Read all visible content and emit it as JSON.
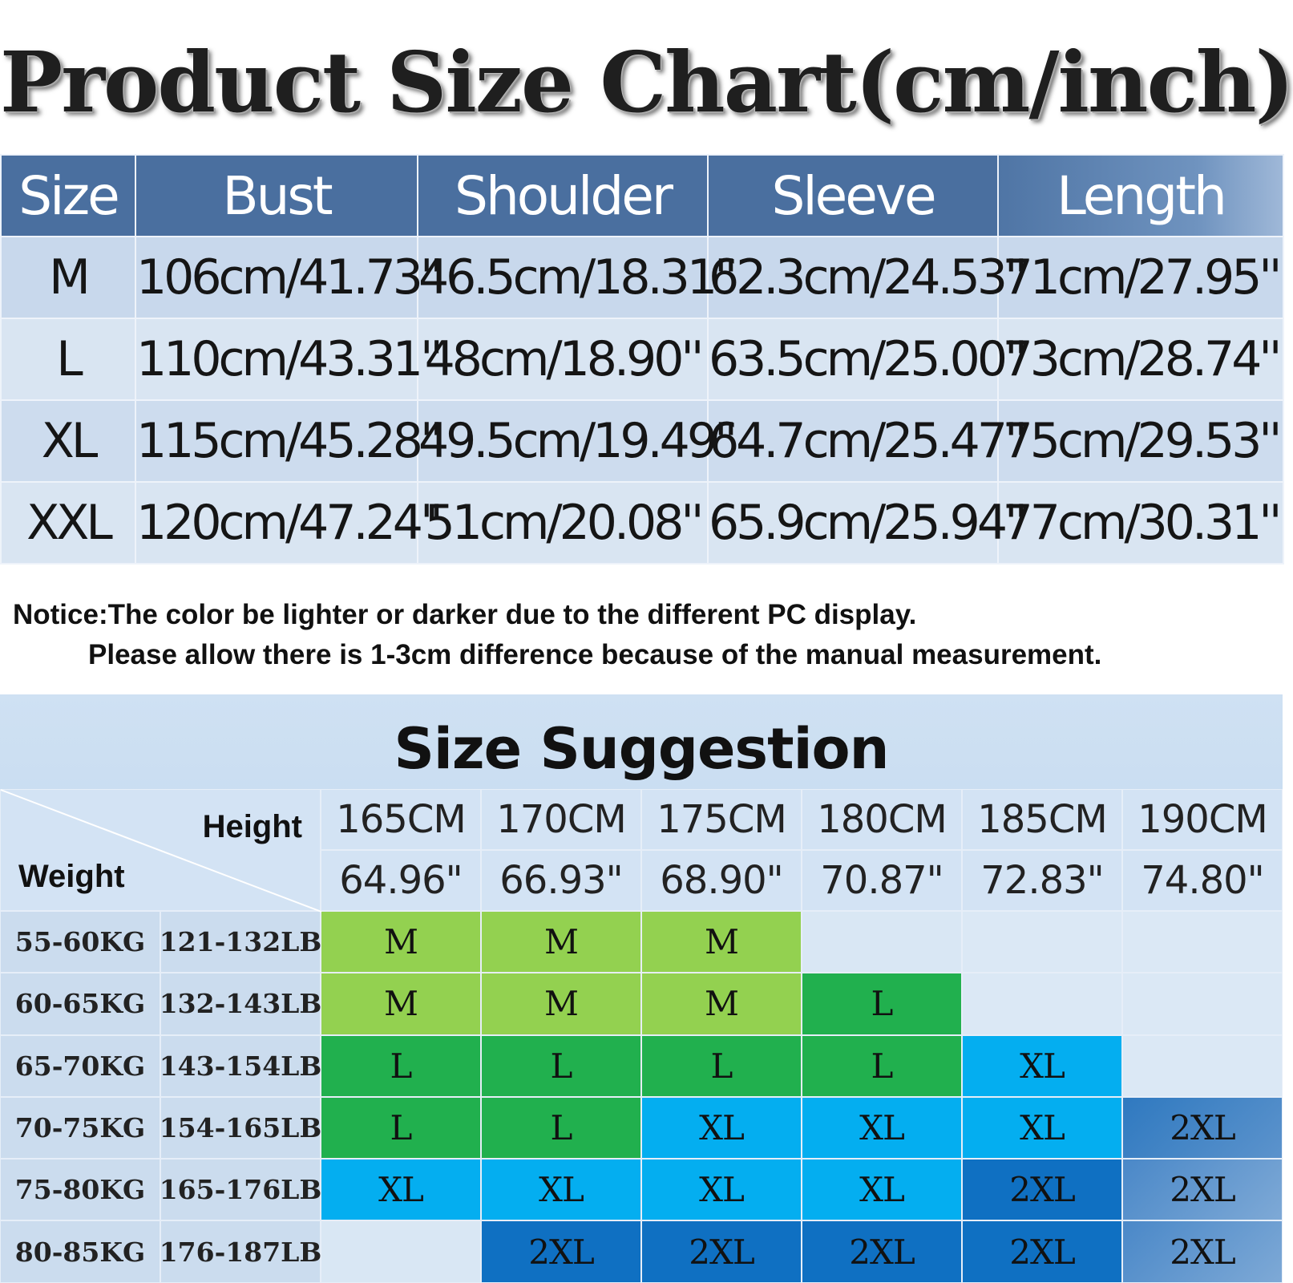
{
  "title": "Product Size Chart(cm/inch)",
  "size_chart": {
    "headers": [
      "Size",
      "Bust",
      "Shoulder",
      "Sleeve",
      "Length"
    ],
    "rows": [
      [
        "M",
        "106cm/41.73''",
        "46.5cm/18.31''",
        "62.3cm/24.53''",
        "71cm/27.95''"
      ],
      [
        "L",
        "110cm/43.31''",
        "48cm/18.90''",
        "63.5cm/25.00''",
        "73cm/28.74''"
      ],
      [
        "XL",
        "115cm/45.28''",
        "49.5cm/19.49''",
        "64.7cm/25.47''",
        "75cm/29.53''"
      ],
      [
        "XXL",
        "120cm/47.24''",
        "51cm/20.08''",
        "65.9cm/25.94''",
        "77cm/30.31''"
      ]
    ]
  },
  "notice": {
    "line1": "Notice:The color be lighter or darker due to the different PC display.",
    "line2": "Please allow there is 1-3cm difference because of the manual measurement."
  },
  "suggestion": {
    "title": "Size Suggestion",
    "height_label": "Height",
    "weight_label": "Weight",
    "heights_cm": [
      "165CM",
      "170CM",
      "175CM",
      "180CM",
      "185CM",
      "190CM"
    ],
    "heights_in": [
      "64.96\"",
      "66.93\"",
      "68.90\"",
      "70.87\"",
      "72.83\"",
      "74.80\""
    ],
    "rows": [
      {
        "kg": "55-60KG",
        "lb": "121-132LB",
        "sizes": [
          "M",
          "M",
          "M",
          "",
          "",
          ""
        ]
      },
      {
        "kg": "60-65KG",
        "lb": "132-143LB",
        "sizes": [
          "M",
          "M",
          "M",
          "L",
          "",
          ""
        ]
      },
      {
        "kg": "65-70KG",
        "lb": "143-154LB",
        "sizes": [
          "L",
          "L",
          "L",
          "L",
          "XL",
          ""
        ]
      },
      {
        "kg": "70-75KG",
        "lb": "154-165LB",
        "sizes": [
          "L",
          "L",
          "XL",
          "XL",
          "XL",
          "2XL"
        ]
      },
      {
        "kg": "75-80KG",
        "lb": "165-176LB",
        "sizes": [
          "XL",
          "XL",
          "XL",
          "XL",
          "2XL",
          "2XL"
        ]
      },
      {
        "kg": "80-85KG",
        "lb": "176-187LB",
        "sizes": [
          "",
          "2XL",
          "2XL",
          "2XL",
          "2XL",
          "2XL"
        ]
      }
    ],
    "colors": {
      "M": "#93d150",
      "L": "#21b04e",
      "XL": "#04aef0",
      "2XL": "#0f70c2"
    }
  }
}
